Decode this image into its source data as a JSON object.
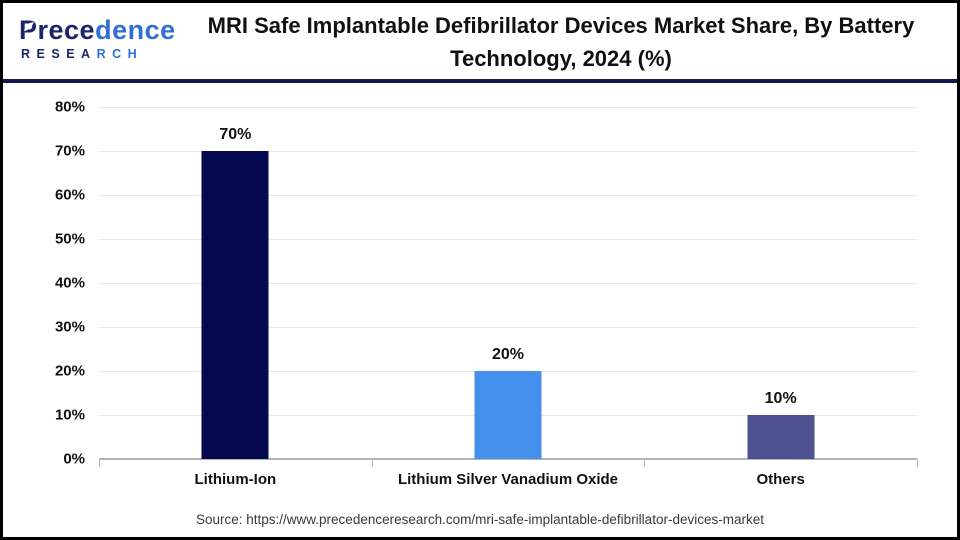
{
  "brand": {
    "name": "Precedence RESEARCH",
    "name_primary": "Prece",
    "name_secondary": "dence",
    "subtitle_primary": "RESEA",
    "subtitle_secondary": "RCH",
    "color_primary": "#1b2668",
    "color_secondary": "#2f6fd6"
  },
  "header": {
    "title": "MRI Safe Implantable Defibrillator Devices Market Share, By Battery Technology, 2024 (%)"
  },
  "chart_data": {
    "type": "bar",
    "title": "MRI Safe Implantable Defibrillator Devices Market Share, By Battery Technology, 2024 (%)",
    "categories": [
      "Lithium-Ion",
      "Lithium Silver Vanadium Oxide",
      "Others"
    ],
    "values": [
      70,
      20,
      10
    ],
    "value_labels": [
      "70%",
      "20%",
      "10%"
    ],
    "bar_colors": [
      "#03084f",
      "#4590ec",
      "#4d5190"
    ],
    "xlabel": "",
    "ylabel": "",
    "ylim": [
      0,
      80
    ],
    "ytick_step": 10,
    "ytick_labels": [
      "0%",
      "10%",
      "20%",
      "30%",
      "40%",
      "50%",
      "60%",
      "70%",
      "80%"
    ],
    "grid": true,
    "legend": "none"
  },
  "footer": {
    "source": "Source: https://www.precedenceresearch.com/mri-safe-implantable-defibrillator-devices-market"
  },
  "colors": {
    "outer_border": "#000000",
    "header_divider": "#14194e",
    "gridline": "#e8e8e8",
    "axis_line": "#b3b3b3",
    "text": "#111111",
    "source_text": "#3a3a3a"
  }
}
